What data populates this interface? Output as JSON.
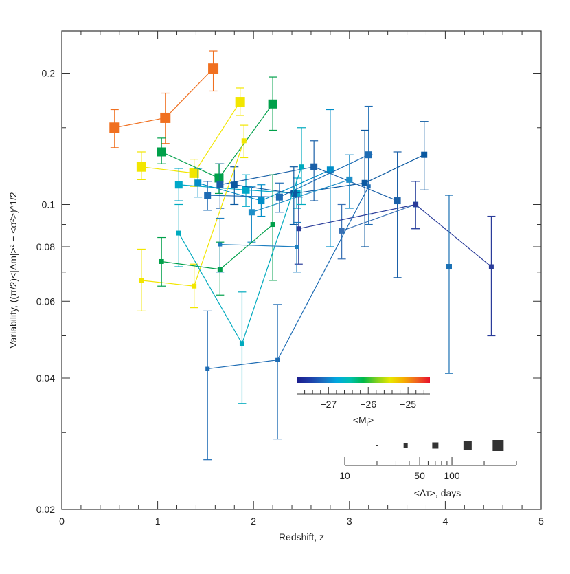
{
  "chart_data": {
    "type": "scatter",
    "xlabel": "Redshift, z",
    "ylabel": "Variability, ((π/2)<|Δm|>² − <σ²>)^1/2",
    "y_scale": "log",
    "xlim": [
      0,
      5
    ],
    "ylim": [
      0.02,
      0.25
    ],
    "x_ticks": [
      {
        "value": 0,
        "label": "0"
      },
      {
        "value": 1,
        "label": "1"
      },
      {
        "value": 2,
        "label": "2"
      },
      {
        "value": 3,
        "label": "3"
      },
      {
        "value": 4,
        "label": "4"
      },
      {
        "value": 5,
        "label": "5"
      }
    ],
    "y_ticks": [
      {
        "value": 0.02,
        "label": "0.02"
      },
      {
        "value": 0.04,
        "label": "0.04"
      },
      {
        "value": 0.06,
        "label": "0.06"
      },
      {
        "value": 0.08,
        "label": "0.08"
      },
      {
        "value": 0.1,
        "label": "0.1"
      },
      {
        "value": 0.2,
        "label": "0.2"
      }
    ],
    "y_minor_ticks": [
      0.03,
      0.05,
      0.07,
      0.09,
      0.15
    ],
    "grid": false,
    "series": [
      {
        "color": "#f07020",
        "marker": "square",
        "size": 15,
        "points": [
          [
            0.55,
            0.15,
            0.135,
            0.165
          ],
          [
            1.08,
            0.158,
            0.138,
            0.18
          ],
          [
            1.58,
            0.205,
            0.182,
            0.225
          ]
        ]
      },
      {
        "color": "#f2e600",
        "marker": "square",
        "size": 14,
        "points": [
          [
            0.83,
            0.122,
            0.114,
            0.132
          ],
          [
            1.38,
            0.118,
            0.11,
            0.127
          ],
          [
            1.86,
            0.172,
            0.16,
            0.185
          ]
        ]
      },
      {
        "color": "#00a04a",
        "marker": "square",
        "size": 13,
        "points": [
          [
            1.04,
            0.132,
            0.124,
            0.142
          ],
          [
            1.64,
            0.115,
            0.106,
            0.124
          ],
          [
            2.2,
            0.17,
            0.148,
            0.196
          ]
        ]
      },
      {
        "color": "#00a8c8",
        "marker": "square",
        "size": 11,
        "points": [
          [
            1.22,
            0.111,
            0.102,
            0.121
          ],
          [
            1.92,
            0.108,
            0.099,
            0.117
          ],
          [
            2.45,
            0.106,
            0.098,
            0.115
          ]
        ]
      },
      {
        "color": "#008ec8",
        "marker": "square",
        "size": 10,
        "points": [
          [
            1.42,
            0.112,
            0.104,
            0.121
          ],
          [
            2.08,
            0.102,
            0.094,
            0.111
          ],
          [
            2.8,
            0.12,
            0.08,
            0.165
          ]
        ]
      },
      {
        "color": "#1e6cb4",
        "marker": "square",
        "size": 10,
        "points": [
          [
            1.52,
            0.105,
            0.097,
            0.113
          ],
          [
            2.27,
            0.104,
            0.096,
            0.112
          ],
          [
            3.2,
            0.13,
            0.095,
            0.168
          ]
        ]
      },
      {
        "color": "#1a60a8",
        "marker": "square",
        "size": 10,
        "points": [
          [
            1.65,
            0.111,
            0.098,
            0.124
          ],
          [
            2.63,
            0.122,
            0.102,
            0.14
          ],
          [
            3.5,
            0.102,
            0.068,
            0.132
          ]
        ]
      },
      {
        "color": "#0a58a0",
        "marker": "square",
        "size": 9,
        "points": [
          [
            1.8,
            0.111,
            0.1,
            0.122
          ],
          [
            2.42,
            0.106,
            0.09,
            0.122
          ],
          [
            3.16,
            0.112,
            0.08,
            0.148
          ],
          [
            3.78,
            0.13,
            0.108,
            0.155
          ]
        ]
      },
      {
        "color": "#1e8ec8",
        "marker": "square",
        "size": 9,
        "points": [
          [
            1.98,
            0.096,
            0.082,
            0.11
          ],
          [
            3.0,
            0.114,
            0.098,
            0.13
          ]
        ]
      },
      {
        "color": "#3870b4",
        "marker": "square",
        "size": 8,
        "points": [
          [
            2.92,
            0.087,
            0.075,
            0.1
          ],
          [
            3.69,
            0.1,
            0.088,
            0.113
          ]
        ]
      },
      {
        "color": "#2a3c9a",
        "marker": "square",
        "size": 7,
        "points": [
          [
            2.47,
            0.088,
            0.073,
            0.104
          ],
          [
            3.69,
            0.1,
            0.088,
            0.113
          ],
          [
            4.48,
            0.072,
            0.05,
            0.094
          ]
        ]
      },
      {
        "color": "#1a70b4",
        "marker": "square",
        "size": 8,
        "points": [
          [
            4.04,
            0.072,
            0.041,
            0.105
          ]
        ]
      },
      {
        "color": "#f2e600",
        "marker": "square",
        "size": 7,
        "points": [
          [
            0.83,
            0.067,
            0.057,
            0.079
          ],
          [
            1.38,
            0.065,
            0.058,
            0.073
          ],
          [
            1.9,
            0.14,
            0.128,
            0.152
          ]
        ]
      },
      {
        "color": "#00a04a",
        "marker": "square",
        "size": 7,
        "points": [
          [
            1.04,
            0.074,
            0.065,
            0.084
          ],
          [
            1.65,
            0.071,
            0.062,
            0.082
          ],
          [
            2.2,
            0.09,
            0.067,
            0.117
          ]
        ]
      },
      {
        "color": "#00aabe",
        "marker": "square",
        "size": 7,
        "points": [
          [
            1.22,
            0.086,
            0.072,
            0.1
          ],
          [
            1.88,
            0.048,
            0.035,
            0.063
          ],
          [
            2.5,
            0.122,
            0.1,
            0.15
          ]
        ]
      },
      {
        "color": "#1e7ec0",
        "marker": "square",
        "size": 6,
        "points": [
          [
            1.65,
            0.081,
            0.07,
            0.093
          ],
          [
            2.45,
            0.08,
            0.07,
            0.091
          ]
        ]
      },
      {
        "color": "#1e6cb4",
        "marker": "square",
        "size": 6,
        "points": [
          [
            1.52,
            0.042,
            0.026,
            0.057
          ],
          [
            2.25,
            0.044,
            0.029,
            0.059
          ],
          [
            3.2,
            0.11,
            0.09,
            0.13
          ]
        ]
      }
    ],
    "colorbar": {
      "label": "<M_i>",
      "label_main": "<M",
      "label_sub": "i",
      "label_end": ">",
      "range": [
        -27.8,
        -24.45
      ],
      "ticks": [
        {
          "value": -27,
          "label": "−27"
        },
        {
          "value": -26,
          "label": "−26"
        },
        {
          "value": -25,
          "label": "−25"
        }
      ],
      "minor_ticks": [
        -27.6,
        -27.4,
        -27.2,
        -26.8,
        -26.6,
        -26.4,
        -26.2,
        -25.8,
        -25.6,
        -25.4,
        -25.2,
        -24.8,
        -24.6
      ],
      "colors": [
        "#1c1c8c",
        "#1e3ca8",
        "#1c6ec0",
        "#00a8e0",
        "#00c0b0",
        "#00b848",
        "#7ed020",
        "#e8e800",
        "#f6b000",
        "#f06420",
        "#e8102a"
      ]
    },
    "size_legend": {
      "label": "<Δτ>, days",
      "scale": "log",
      "range": [
        10,
        400
      ],
      "ticks": [
        {
          "value": 10,
          "label": "10"
        },
        {
          "value": 50,
          "label": "50"
        },
        {
          "value": 100,
          "label": "100"
        }
      ],
      "minor_ticks": [
        20,
        30,
        40,
        60,
        70,
        80,
        90,
        200,
        300,
        400
      ],
      "markers": [
        {
          "value": 20,
          "size": 2
        },
        {
          "value": 37,
          "size": 6
        },
        {
          "value": 70,
          "size": 9
        },
        {
          "value": 140,
          "size": 12
        },
        {
          "value": 270,
          "size": 16
        }
      ]
    }
  }
}
